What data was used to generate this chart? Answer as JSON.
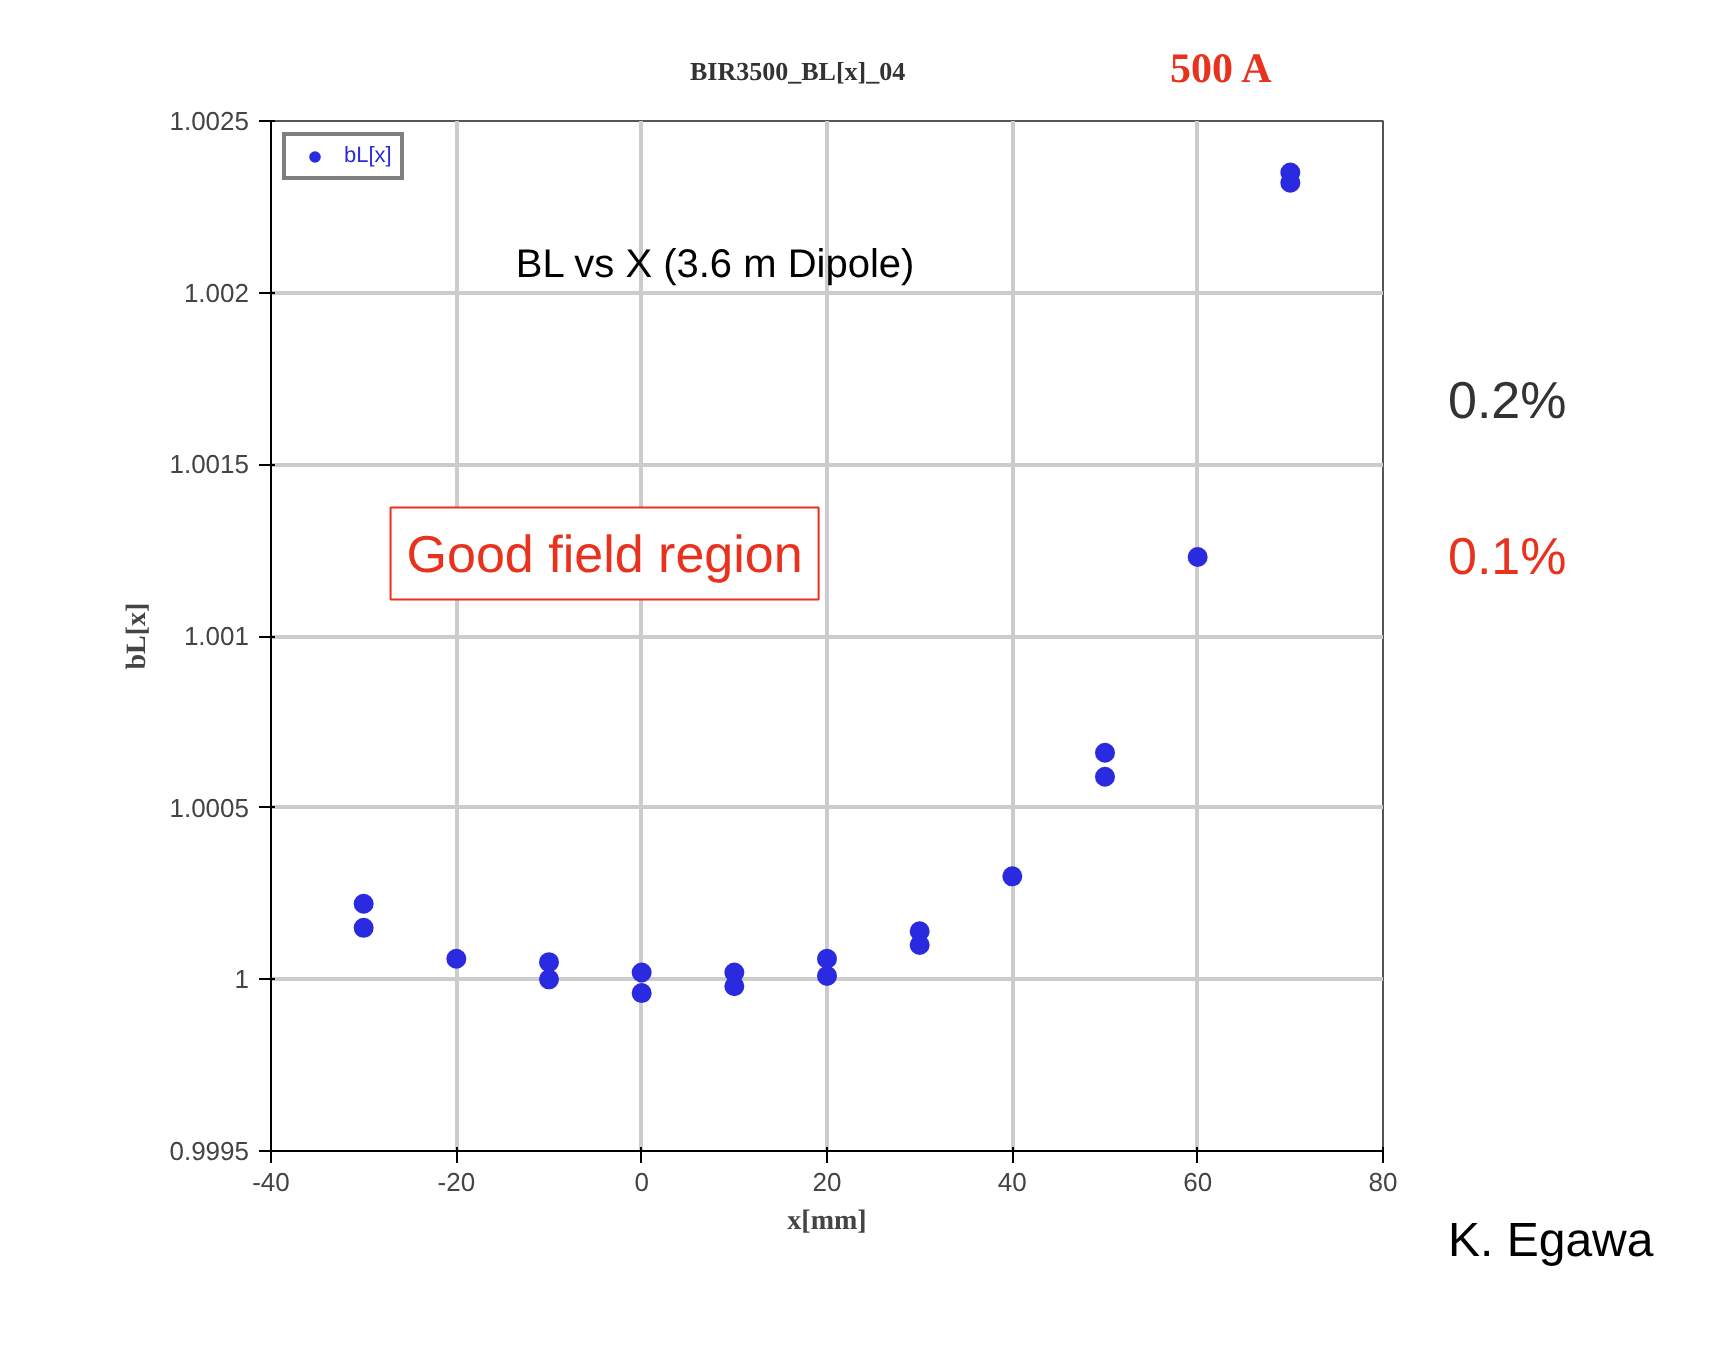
{
  "chart_data": {
    "type": "scatter",
    "title": "BIR3500_BL[x]_04",
    "subtitle": "500 A",
    "xlabel": "x[mm]",
    "ylabel": "bL[x]",
    "x": [
      -30,
      -30,
      -20,
      -10,
      -10,
      0,
      0,
      10,
      10,
      20,
      20,
      30,
      30,
      40,
      50,
      50,
      60,
      70,
      70
    ],
    "series": [
      {
        "name": "bL[x]",
        "color": "#2a2ae0",
        "values": [
          1.00022,
          1.00015,
          1.00006,
          1.00005,
          1.0,
          1.00002,
          0.99996,
          1.00002,
          0.99998,
          1.00006,
          1.00001,
          1.00014,
          1.0001,
          1.0003,
          1.00066,
          1.00059,
          1.00123,
          1.00235,
          1.00232
        ]
      }
    ],
    "xlim": [
      -40,
      80
    ],
    "ylim": [
      0.9995,
      1.0025
    ],
    "xticks": [
      -40,
      -20,
      0,
      20,
      40,
      60,
      80
    ],
    "yticks": [
      0.9995,
      1,
      1.0005,
      1.001,
      1.0015,
      1.002,
      1.0025
    ],
    "grid": true,
    "legend": "top left",
    "marker": "circle",
    "annotations": [
      "BL vs X (3.6 m Dipole)",
      "Good field region",
      "0.2%",
      "0.1%",
      "K. Egawa"
    ]
  }
}
